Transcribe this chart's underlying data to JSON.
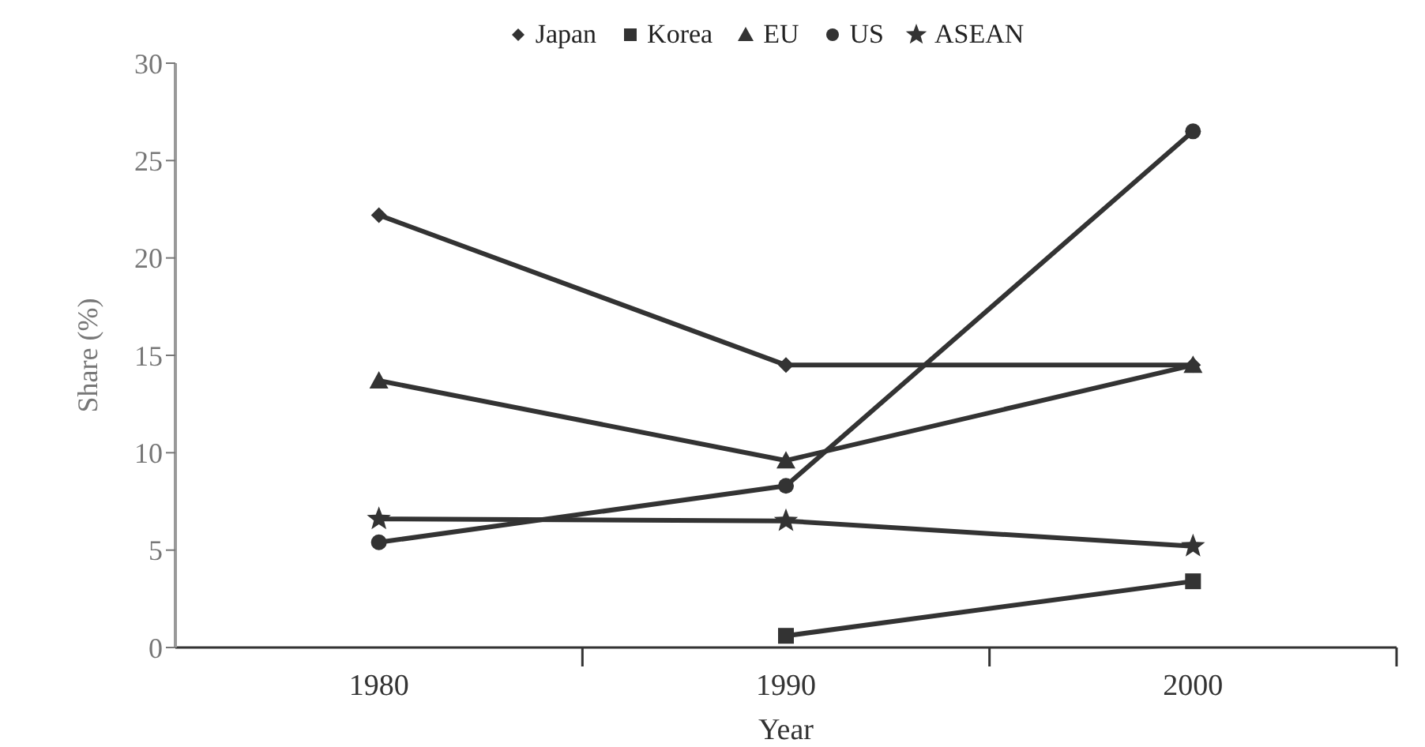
{
  "chart_data": {
    "type": "line",
    "xlabel": "Year",
    "ylabel": "Share (%)",
    "categories": [
      "1980",
      "1990",
      "2000"
    ],
    "series": [
      {
        "name": "Japan",
        "color": "#333333",
        "marker": "diamond",
        "values": [
          22.2,
          14.5,
          14.5
        ]
      },
      {
        "name": "Korea",
        "color": "#333333",
        "marker": "square",
        "values": [
          null,
          0.6,
          3.4
        ]
      },
      {
        "name": "EU",
        "color": "#333333",
        "marker": "triangle",
        "values": [
          13.7,
          9.6,
          14.5
        ]
      },
      {
        "name": "US",
        "color": "#333333",
        "marker": "circle",
        "values": [
          5.4,
          8.3,
          26.5
        ]
      },
      {
        "name": "ASEAN",
        "color": "#333333",
        "marker": "star",
        "values": [
          6.6,
          6.5,
          5.2
        ]
      }
    ],
    "ylim": [
      0,
      30
    ],
    "yticks": [
      0,
      5,
      10,
      15,
      20,
      25,
      30
    ],
    "legend": "top",
    "grid": false,
    "line_style": "solid"
  }
}
